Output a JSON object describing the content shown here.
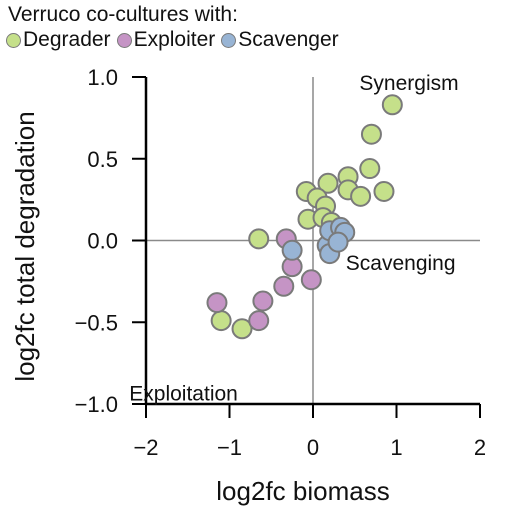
{
  "legend": {
    "title": "Verruco co-cultures with:",
    "items": [
      {
        "label": "Degrader",
        "color": "#c5e08a"
      },
      {
        "label": "Exploiter",
        "color": "#c594c5"
      },
      {
        "label": "Scavenger",
        "color": "#98b4d4"
      }
    ]
  },
  "chart_data": {
    "type": "scatter",
    "xlabel": "log2fc biomass",
    "ylabel": "log2fc total degradation",
    "xlim": [
      -2,
      2
    ],
    "ylim": [
      -1,
      1
    ],
    "xticks": [
      -2,
      -1,
      0,
      1,
      2
    ],
    "yticks": [
      -1.0,
      -0.5,
      0.0,
      0.5,
      1.0
    ],
    "xtick_labels": [
      "−2",
      "−1",
      "0",
      "1",
      "2"
    ],
    "ytick_labels": [
      "−1.0",
      "−0.5",
      "0.0",
      "0.5",
      "1.0"
    ],
    "grid": false,
    "legend_position": "top-left",
    "annotations": [
      {
        "text": "Synergism",
        "x": 1.15,
        "y": 0.97
      },
      {
        "text": "Scavenging",
        "x": 1.05,
        "y": -0.13
      },
      {
        "text": "Exploitation",
        "x": -1.55,
        "y": -0.93
      }
    ],
    "series": [
      {
        "name": "Degrader",
        "color": "#c5e08a",
        "points": [
          [
            0.95,
            0.83
          ],
          [
            0.7,
            0.65
          ],
          [
            0.68,
            0.44
          ],
          [
            0.42,
            0.39
          ],
          [
            0.42,
            0.31
          ],
          [
            0.57,
            0.27
          ],
          [
            0.85,
            0.3
          ],
          [
            0.18,
            0.35
          ],
          [
            -0.08,
            0.3
          ],
          [
            0.05,
            0.26
          ],
          [
            0.15,
            0.21
          ],
          [
            -0.06,
            0.13
          ],
          [
            0.12,
            0.14
          ],
          [
            0.22,
            0.11
          ],
          [
            -0.65,
            0.01
          ],
          [
            -1.1,
            -0.49
          ],
          [
            -0.85,
            -0.54
          ]
        ]
      },
      {
        "name": "Exploiter",
        "color": "#c594c5",
        "points": [
          [
            -1.15,
            -0.38
          ],
          [
            -0.6,
            -0.37
          ],
          [
            -0.65,
            -0.49
          ],
          [
            -0.35,
            -0.28
          ],
          [
            -0.25,
            -0.16
          ],
          [
            -0.32,
            0.01
          ],
          [
            -0.02,
            -0.24
          ]
        ]
      },
      {
        "name": "Scavenger",
        "color": "#98b4d4",
        "points": [
          [
            -0.25,
            -0.06
          ],
          [
            0.17,
            -0.03
          ],
          [
            0.2,
            -0.08
          ],
          [
            0.2,
            0.06
          ],
          [
            0.33,
            0.08
          ],
          [
            0.38,
            0.05
          ],
          [
            0.3,
            -0.01
          ]
        ]
      }
    ]
  }
}
